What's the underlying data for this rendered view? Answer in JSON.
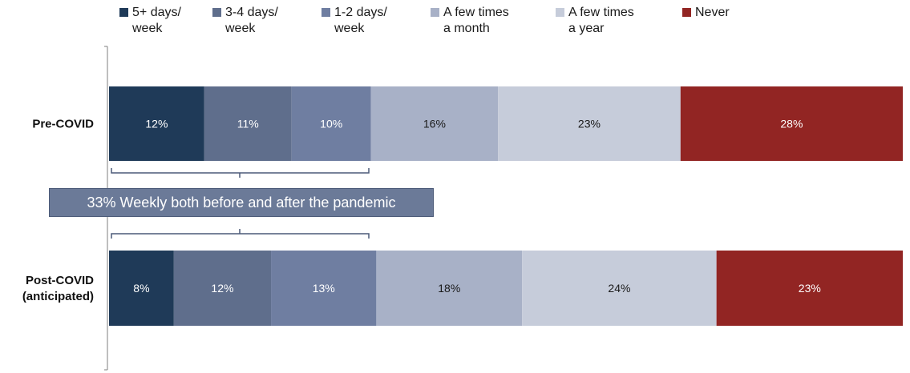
{
  "chart_data": {
    "type": "bar",
    "orientation": "horizontal",
    "stacked": true,
    "categories": [
      "Pre-COVID",
      "Post-COVID\n(anticipated)"
    ],
    "series": [
      {
        "name": "5+ days/\nweek",
        "values": [
          12,
          8
        ],
        "color": "#1f3a58",
        "label_color": "#ffffff"
      },
      {
        "name": "3-4 days/\nweek",
        "values": [
          11,
          12
        ],
        "color": "#5f6e8c",
        "label_color": "#ffffff"
      },
      {
        "name": "1-2 days/\nweek",
        "values": [
          10,
          13
        ],
        "color": "#6f7ea1",
        "label_color": "#ffffff"
      },
      {
        "name": "A few times\na month",
        "values": [
          16,
          18
        ],
        "color": "#a8b1c7",
        "label_color": "#1a1a1a"
      },
      {
        "name": "A few times\na year",
        "values": [
          23,
          24
        ],
        "color": "#c6ccda",
        "label_color": "#1a1a1a"
      },
      {
        "name": "Never",
        "values": [
          28,
          23
        ],
        "color": "#922523",
        "label_color": "#ffffff"
      }
    ],
    "data_labels": [
      [
        "12%",
        "11%",
        "10%",
        "16%",
        "23%",
        "28%"
      ],
      [
        "8%",
        "12%",
        "13%",
        "18%",
        "24%",
        "23%"
      ]
    ],
    "legend_position": "top",
    "grid": false
  },
  "annotation": {
    "text": "33% Weekly both before and after the pandemic"
  }
}
